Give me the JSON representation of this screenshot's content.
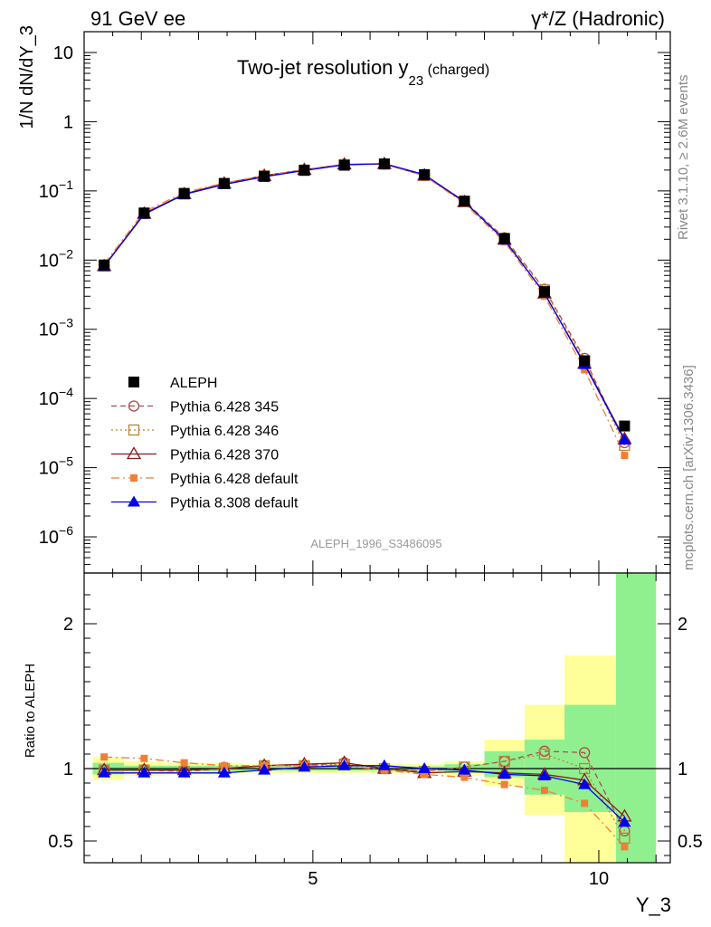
{
  "header": {
    "left": "91 GeV ee",
    "right": "γ*/Z (Hadronic)"
  },
  "title": {
    "main": "Two-jet resolution y",
    "sub": "23",
    "suffix": " (charged)"
  },
  "side_labels": {
    "rivet": "Rivet 3.1.10, ≥ 2.6M events",
    "mcplots": "mcplots.cern.ch [arXiv:1306.3436]"
  },
  "analysis_label": "ALEPH_1996_S3486095",
  "colors": {
    "aleph": "#000000",
    "p345": "#b04a4a",
    "p346": "#b8862e",
    "p370": "#8b1a1a",
    "pdef": "#f07f36",
    "p8": "#0000ee",
    "band_green": "#90f090",
    "band_yellow": "#ffff99"
  },
  "chart_data": [
    {
      "type": "line",
      "ylabel": "1/N dN/dY_3",
      "yscale": "log",
      "ylim": [
        3e-07,
        20
      ],
      "xlim": [
        1,
        11.25
      ],
      "y_ticks": [
        {
          "value": 1e-06,
          "base": "10",
          "exp": "−6"
        },
        {
          "value": 1e-05,
          "base": "10",
          "exp": "−5"
        },
        {
          "value": 0.0001,
          "base": "10",
          "exp": "−4"
        },
        {
          "value": 0.001,
          "base": "10",
          "exp": "−3"
        },
        {
          "value": 0.01,
          "base": "10",
          "exp": "−2"
        },
        {
          "value": 0.1,
          "base": "10",
          "exp": "−1"
        },
        {
          "value": 1,
          "base": "1",
          "exp": ""
        },
        {
          "value": 10,
          "base": "10",
          "exp": ""
        }
      ],
      "x": [
        1.35,
        2.05,
        2.75,
        3.45,
        4.15,
        4.85,
        5.55,
        6.25,
        6.95,
        7.65,
        8.35,
        9.05,
        9.75,
        10.45
      ],
      "series": [
        {
          "name": "ALEPH",
          "key": "aleph",
          "marker": "square-filled",
          "line": "none",
          "values": [
            0.0085,
            0.048,
            0.092,
            0.128,
            0.162,
            0.198,
            0.235,
            0.245,
            0.172,
            0.071,
            0.0205,
            0.0035,
            0.00035,
            4e-05
          ]
        },
        {
          "name": "Pythia 6.428 345",
          "key": "p345",
          "marker": "circle-open",
          "line": "dashed",
          "values": [
            0.0082,
            0.047,
            0.09,
            0.128,
            0.165,
            0.2,
            0.24,
            0.245,
            0.168,
            0.071,
            0.021,
            0.0038,
            0.00038,
            2.3e-05
          ]
        },
        {
          "name": "Pythia 6.428 346",
          "key": "p346",
          "marker": "square-open",
          "line": "dotted",
          "values": [
            0.0082,
            0.047,
            0.09,
            0.128,
            0.165,
            0.2,
            0.24,
            0.245,
            0.168,
            0.071,
            0.0205,
            0.0037,
            0.00035,
            2.1e-05
          ]
        },
        {
          "name": "Pythia 6.428 370",
          "key": "p370",
          "marker": "triangle-open",
          "line": "solid",
          "values": [
            0.0082,
            0.047,
            0.09,
            0.128,
            0.166,
            0.202,
            0.242,
            0.245,
            0.167,
            0.069,
            0.0198,
            0.0033,
            0.00032,
            2.6e-05
          ]
        },
        {
          "name": "Pythia 6.428 default",
          "key": "pdef",
          "marker": "square-small-filled",
          "line": "dashdot",
          "values": [
            0.0088,
            0.05,
            0.095,
            0.13,
            0.166,
            0.2,
            0.24,
            0.243,
            0.165,
            0.066,
            0.0183,
            0.003,
            0.00026,
            1.5e-05
          ]
        },
        {
          "name": "Pythia 8.308 default",
          "key": "p8",
          "marker": "triangle-filled",
          "line": "solid",
          "values": [
            0.0081,
            0.046,
            0.089,
            0.124,
            0.16,
            0.197,
            0.238,
            0.248,
            0.172,
            0.07,
            0.0195,
            0.0033,
            0.00031,
            2.5e-05
          ]
        }
      ]
    },
    {
      "type": "line",
      "ylabel": "Ratio to ALEPH",
      "xlabel": "Y_3",
      "ylim": [
        0.35,
        2.35
      ],
      "xlim": [
        1,
        11.25
      ],
      "y_ticks": [
        0.5,
        1,
        2
      ],
      "y_tick_labels": [
        "0.5",
        "1",
        "2"
      ],
      "x_ticks": [
        5,
        10
      ],
      "x_tick_labels": [
        "5",
        "10"
      ],
      "reference_line": 1,
      "bands": [
        {
          "x0": 1.15,
          "x1": 1.7,
          "green": [
            0.96,
            1.04
          ],
          "yellow": [
            0.92,
            1.08
          ]
        },
        {
          "x0": 1.7,
          "x1": 2.4,
          "green": [
            0.98,
            1.02
          ],
          "yellow": [
            0.95,
            1.05
          ]
        },
        {
          "x0": 2.4,
          "x1": 3.1,
          "green": [
            0.98,
            1.02
          ],
          "yellow": [
            0.96,
            1.04
          ]
        },
        {
          "x0": 3.1,
          "x1": 3.8,
          "green": [
            0.98,
            1.02
          ],
          "yellow": [
            0.96,
            1.04
          ]
        },
        {
          "x0": 3.8,
          "x1": 4.5,
          "green": [
            0.985,
            1.015
          ],
          "yellow": [
            0.97,
            1.03
          ]
        },
        {
          "x0": 4.5,
          "x1": 5.2,
          "green": [
            0.985,
            1.015
          ],
          "yellow": [
            0.97,
            1.03
          ]
        },
        {
          "x0": 5.2,
          "x1": 5.9,
          "green": [
            0.985,
            1.015
          ],
          "yellow": [
            0.97,
            1.03
          ]
        },
        {
          "x0": 5.9,
          "x1": 6.6,
          "green": [
            0.985,
            1.015
          ],
          "yellow": [
            0.97,
            1.03
          ]
        },
        {
          "x0": 6.6,
          "x1": 7.3,
          "green": [
            0.985,
            1.015
          ],
          "yellow": [
            0.97,
            1.03
          ]
        },
        {
          "x0": 7.3,
          "x1": 8.0,
          "green": [
            0.97,
            1.03
          ],
          "yellow": [
            0.95,
            1.05
          ]
        },
        {
          "x0": 8.0,
          "x1": 8.7,
          "green": [
            0.94,
            1.12
          ],
          "yellow": [
            0.88,
            1.2
          ]
        },
        {
          "x0": 8.7,
          "x1": 9.4,
          "green": [
            0.82,
            1.2
          ],
          "yellow": [
            0.68,
            1.44
          ]
        },
        {
          "x0": 9.4,
          "x1": 10.3,
          "green": [
            0.7,
            1.44
          ],
          "yellow": [
            0.35,
            1.78
          ]
        },
        {
          "x0": 10.3,
          "x1": 11.0,
          "green": [
            0.35,
            2.35
          ],
          "yellow": [
            0.35,
            2.35
          ]
        }
      ],
      "series": [
        {
          "name": "Pythia 6.428 345",
          "key": "p345",
          "marker": "circle-open",
          "line": "dashed",
          "values": [
            0.99,
            0.99,
            0.98,
            1.0,
            1.02,
            1.02,
            1.04,
            1.0,
            0.98,
            1.01,
            1.05,
            1.12,
            1.11,
            0.57
          ]
        },
        {
          "name": "Pythia 6.428 346",
          "key": "p346",
          "marker": "square-open",
          "line": "dotted",
          "values": [
            0.99,
            0.99,
            0.98,
            1.0,
            1.02,
            1.02,
            1.03,
            1.0,
            0.98,
            1.01,
            1.05,
            1.1,
            1.0,
            0.52
          ]
        },
        {
          "name": "Pythia 6.428 370",
          "key": "p370",
          "marker": "triangle-open",
          "line": "solid",
          "values": [
            0.99,
            0.99,
            0.99,
            1.0,
            1.02,
            1.03,
            1.04,
            1.0,
            0.97,
            0.98,
            0.97,
            0.96,
            0.92,
            0.67
          ]
        },
        {
          "name": "Pythia 6.428 default",
          "key": "pdef",
          "marker": "square-small-filled",
          "line": "dashdot",
          "values": [
            1.08,
            1.07,
            1.04,
            1.02,
            1.02,
            1.02,
            1.02,
            0.99,
            0.96,
            0.94,
            0.89,
            0.85,
            0.76,
            0.46
          ]
        },
        {
          "name": "Pythia 8.308 default",
          "key": "p8",
          "marker": "triangle-filled",
          "line": "solid",
          "values": [
            0.97,
            0.97,
            0.97,
            0.97,
            0.99,
            1.01,
            1.02,
            1.02,
            1.0,
            0.99,
            0.96,
            0.95,
            0.89,
            0.63
          ]
        }
      ]
    }
  ]
}
